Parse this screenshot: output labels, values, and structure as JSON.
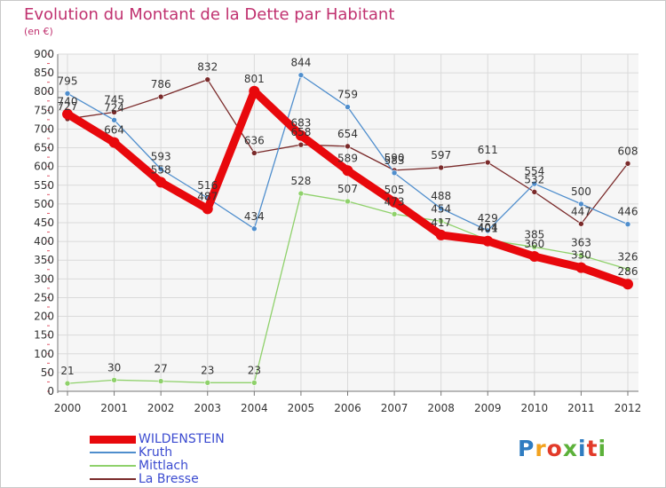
{
  "header": {
    "title": "Evolution du Montant de la Dette par Habitant",
    "subtitle": "(en €)"
  },
  "logo": {
    "text": "Proxiti"
  },
  "chart_data": {
    "type": "line",
    "title": "Evolution du Montant de la Dette par Habitant",
    "subtitle": "(en €)",
    "x": [
      "2000",
      "2001",
      "2002",
      "2003",
      "2004",
      "2005",
      "2006",
      "2007",
      "2008",
      "2009",
      "2010",
      "2011",
      "2012"
    ],
    "yticks": [
      0,
      50,
      100,
      150,
      200,
      250,
      300,
      350,
      400,
      450,
      500,
      550,
      600,
      650,
      700,
      750,
      800,
      850,
      900
    ],
    "ylim": [
      0,
      900
    ],
    "grid": true,
    "legend_position": "bottom-left",
    "series": [
      {
        "name": "WILDENSTEIN",
        "color": "#e8080c",
        "values": [
          740,
          664,
          558,
          487,
          801,
          683,
          589,
          505,
          417,
          401,
          360,
          330,
          286
        ]
      },
      {
        "name": "Kruth",
        "color": "#4f8ecd",
        "values": [
          795,
          724,
          593,
          516,
          434,
          844,
          759,
          583,
          488,
          429,
          554,
          500,
          446
        ]
      },
      {
        "name": "Mittlach",
        "color": "#8fd16b",
        "values": [
          21,
          30,
          27,
          23,
          23,
          528,
          507,
          473,
          454,
          404,
          385,
          363,
          326
        ]
      },
      {
        "name": "La Bresse",
        "color": "#7a2a2a",
        "values": [
          727,
          745,
          786,
          832,
          636,
          658,
          654,
          590,
          597,
          611,
          532,
          447,
          608
        ]
      }
    ]
  }
}
